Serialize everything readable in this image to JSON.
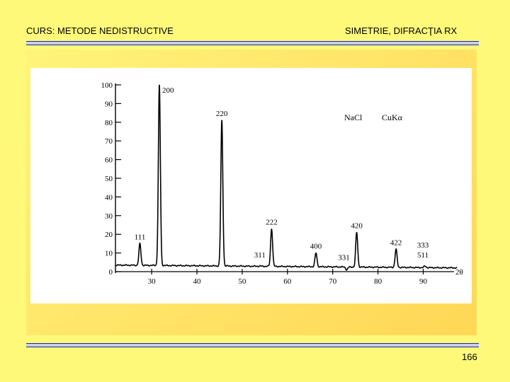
{
  "header": {
    "left_title": "CURS: METODE NEDISTRUCTIVE",
    "right_title": "SIMETRIE, DIFRACŢIA RX"
  },
  "page_number": "166",
  "colors": {
    "background": "#fff97a",
    "rule": "#1e2d8c",
    "trace": "#000000"
  },
  "chart_data": {
    "type": "line",
    "title": "",
    "xlabel": "2θ",
    "ylabel": "",
    "annotations": [
      "NaCl",
      "CuKα"
    ],
    "xlim": [
      22,
      99
    ],
    "ylim": [
      0,
      100
    ],
    "x_ticks": [
      30,
      40,
      50,
      60,
      70,
      80,
      90
    ],
    "y_ticks": [
      0,
      10,
      20,
      30,
      40,
      50,
      60,
      70,
      80,
      90,
      100
    ],
    "grid": false,
    "peaks": [
      {
        "label": "111",
        "x": 27.4,
        "y": 15
      },
      {
        "label": "200",
        "x": 31.7,
        "y": 100
      },
      {
        "label": "220",
        "x": 45.5,
        "y": 81
      },
      {
        "label": "311",
        "x": 53.9,
        "y": 3
      },
      {
        "label": "222",
        "x": 56.5,
        "y": 23
      },
      {
        "label": "400",
        "x": 66.3,
        "y": 10
      },
      {
        "label": "331",
        "x": 73.1,
        "y": 1
      },
      {
        "label": "420",
        "x": 75.3,
        "y": 21
      },
      {
        "label": "422",
        "x": 84.0,
        "y": 12
      },
      {
        "label": "333",
        "x": 90.4,
        "y": 3
      },
      {
        "label": "511",
        "x": 90.4,
        "y": 3
      }
    ]
  }
}
